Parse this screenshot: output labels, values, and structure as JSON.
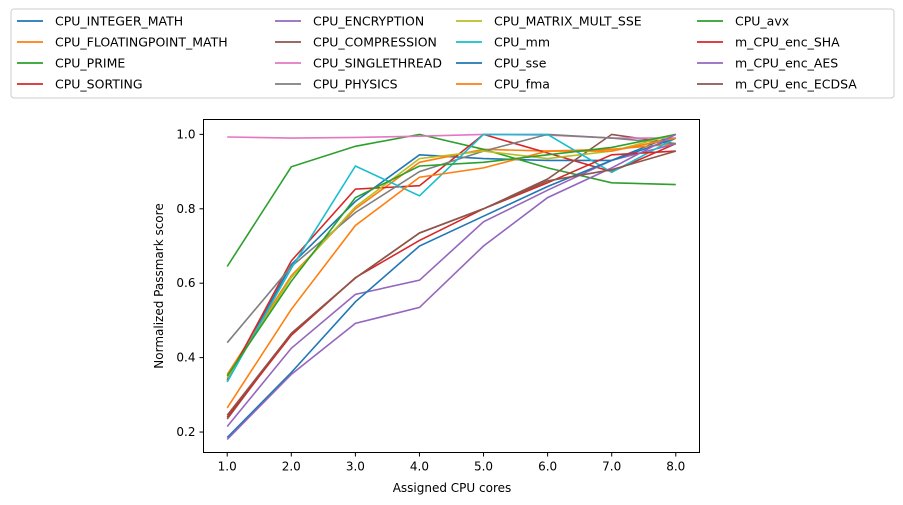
{
  "chart_data": {
    "type": "line",
    "xlabel": "Assigned CPU cores",
    "ylabel": "Normalized Passmark score",
    "x": [
      1.0,
      2.0,
      3.0,
      4.0,
      5.0,
      6.0,
      7.0,
      8.0
    ],
    "x_tick_labels": [
      "1.0",
      "2.0",
      "3.0",
      "4.0",
      "5.0",
      "6.0",
      "7.0",
      "8.0"
    ],
    "xlim": [
      0.63,
      8.37
    ],
    "ylim": [
      0.145,
      1.04
    ],
    "y_ticks": [
      0.2,
      0.4,
      0.6,
      0.8,
      1.0
    ],
    "y_tick_labels": [
      "0.2",
      "0.4",
      "0.6",
      "0.8",
      "1.0"
    ],
    "grid": false,
    "legend_position": "top, above plot, 4 columns",
    "series": [
      {
        "name": "CPU_INTEGER_MATH",
        "color": "#1f77b4",
        "values": [
          0.335,
          0.65,
          0.82,
          0.945,
          0.935,
          0.93,
          0.93,
          1.0
        ]
      },
      {
        "name": "CPU_FLOATINGPOINT_MATH",
        "color": "#ff7f0e",
        "values": [
          0.355,
          0.62,
          0.8,
          0.925,
          0.96,
          0.955,
          0.96,
          0.975
        ]
      },
      {
        "name": "CPU_PRIME",
        "color": "#2ca02c",
        "values": [
          0.645,
          0.913,
          0.968,
          1.0,
          0.96,
          0.91,
          0.87,
          0.865
        ]
      },
      {
        "name": "CPU_SORTING",
        "color": "#d62728",
        "values": [
          0.34,
          0.66,
          0.853,
          0.862,
          1.0,
          0.95,
          0.9,
          0.975
        ]
      },
      {
        "name": "CPU_ENCRYPTION",
        "color": "#9467bd",
        "values": [
          0.215,
          0.425,
          0.57,
          0.608,
          0.765,
          0.85,
          0.93,
          0.975
        ]
      },
      {
        "name": "CPU_COMPRESSION",
        "color": "#8c564b",
        "values": [
          0.235,
          0.465,
          0.614,
          0.735,
          0.8,
          0.88,
          1.0,
          0.975
        ]
      },
      {
        "name": "CPU_SINGLETHREAD",
        "color": "#e377c2",
        "values": [
          0.993,
          0.99,
          0.992,
          0.995,
          1.0,
          0.998,
          0.99,
          0.99
        ]
      },
      {
        "name": "CPU_PHYSICS",
        "color": "#7f7f7f",
        "values": [
          0.44,
          0.645,
          0.79,
          0.9,
          0.955,
          1.0,
          0.99,
          0.975
        ]
      },
      {
        "name": "CPU_MATRIX_MULT_SSE",
        "color": "#bcbd22",
        "values": [
          0.345,
          0.615,
          0.805,
          0.935,
          0.955,
          0.935,
          0.955,
          1.0
        ]
      },
      {
        "name": "CPU_mm",
        "color": "#17becf",
        "values": [
          0.335,
          0.64,
          0.915,
          0.835,
          1.0,
          1.0,
          0.898,
          0.99
        ]
      },
      {
        "name": "CPU_sse",
        "color": "#1f77b4",
        "values": [
          0.185,
          0.36,
          0.55,
          0.7,
          0.78,
          0.86,
          0.93,
          0.99
        ]
      },
      {
        "name": "CPU_fma",
        "color": "#ff7f0e",
        "values": [
          0.265,
          0.53,
          0.755,
          0.885,
          0.91,
          0.955,
          0.955,
          0.99
        ]
      },
      {
        "name": "CPU_avx",
        "color": "#2ca02c",
        "values": [
          0.35,
          0.605,
          0.83,
          0.915,
          0.925,
          0.945,
          0.965,
          1.0
        ]
      },
      {
        "name": "m_CPU_enc_SHA",
        "color": "#d62728",
        "values": [
          0.24,
          0.46,
          0.615,
          0.715,
          0.8,
          0.87,
          0.945,
          0.955
        ]
      },
      {
        "name": "m_CPU_enc_AES",
        "color": "#9467bd",
        "values": [
          0.18,
          0.355,
          0.492,
          0.535,
          0.7,
          0.83,
          0.91,
          1.0
        ]
      },
      {
        "name": "m_CPU_enc_ECDSA",
        "color": "#8c564b",
        "values": [
          0.245,
          0.465,
          0.614,
          0.735,
          0.8,
          0.875,
          0.905,
          0.955
        ]
      }
    ]
  }
}
